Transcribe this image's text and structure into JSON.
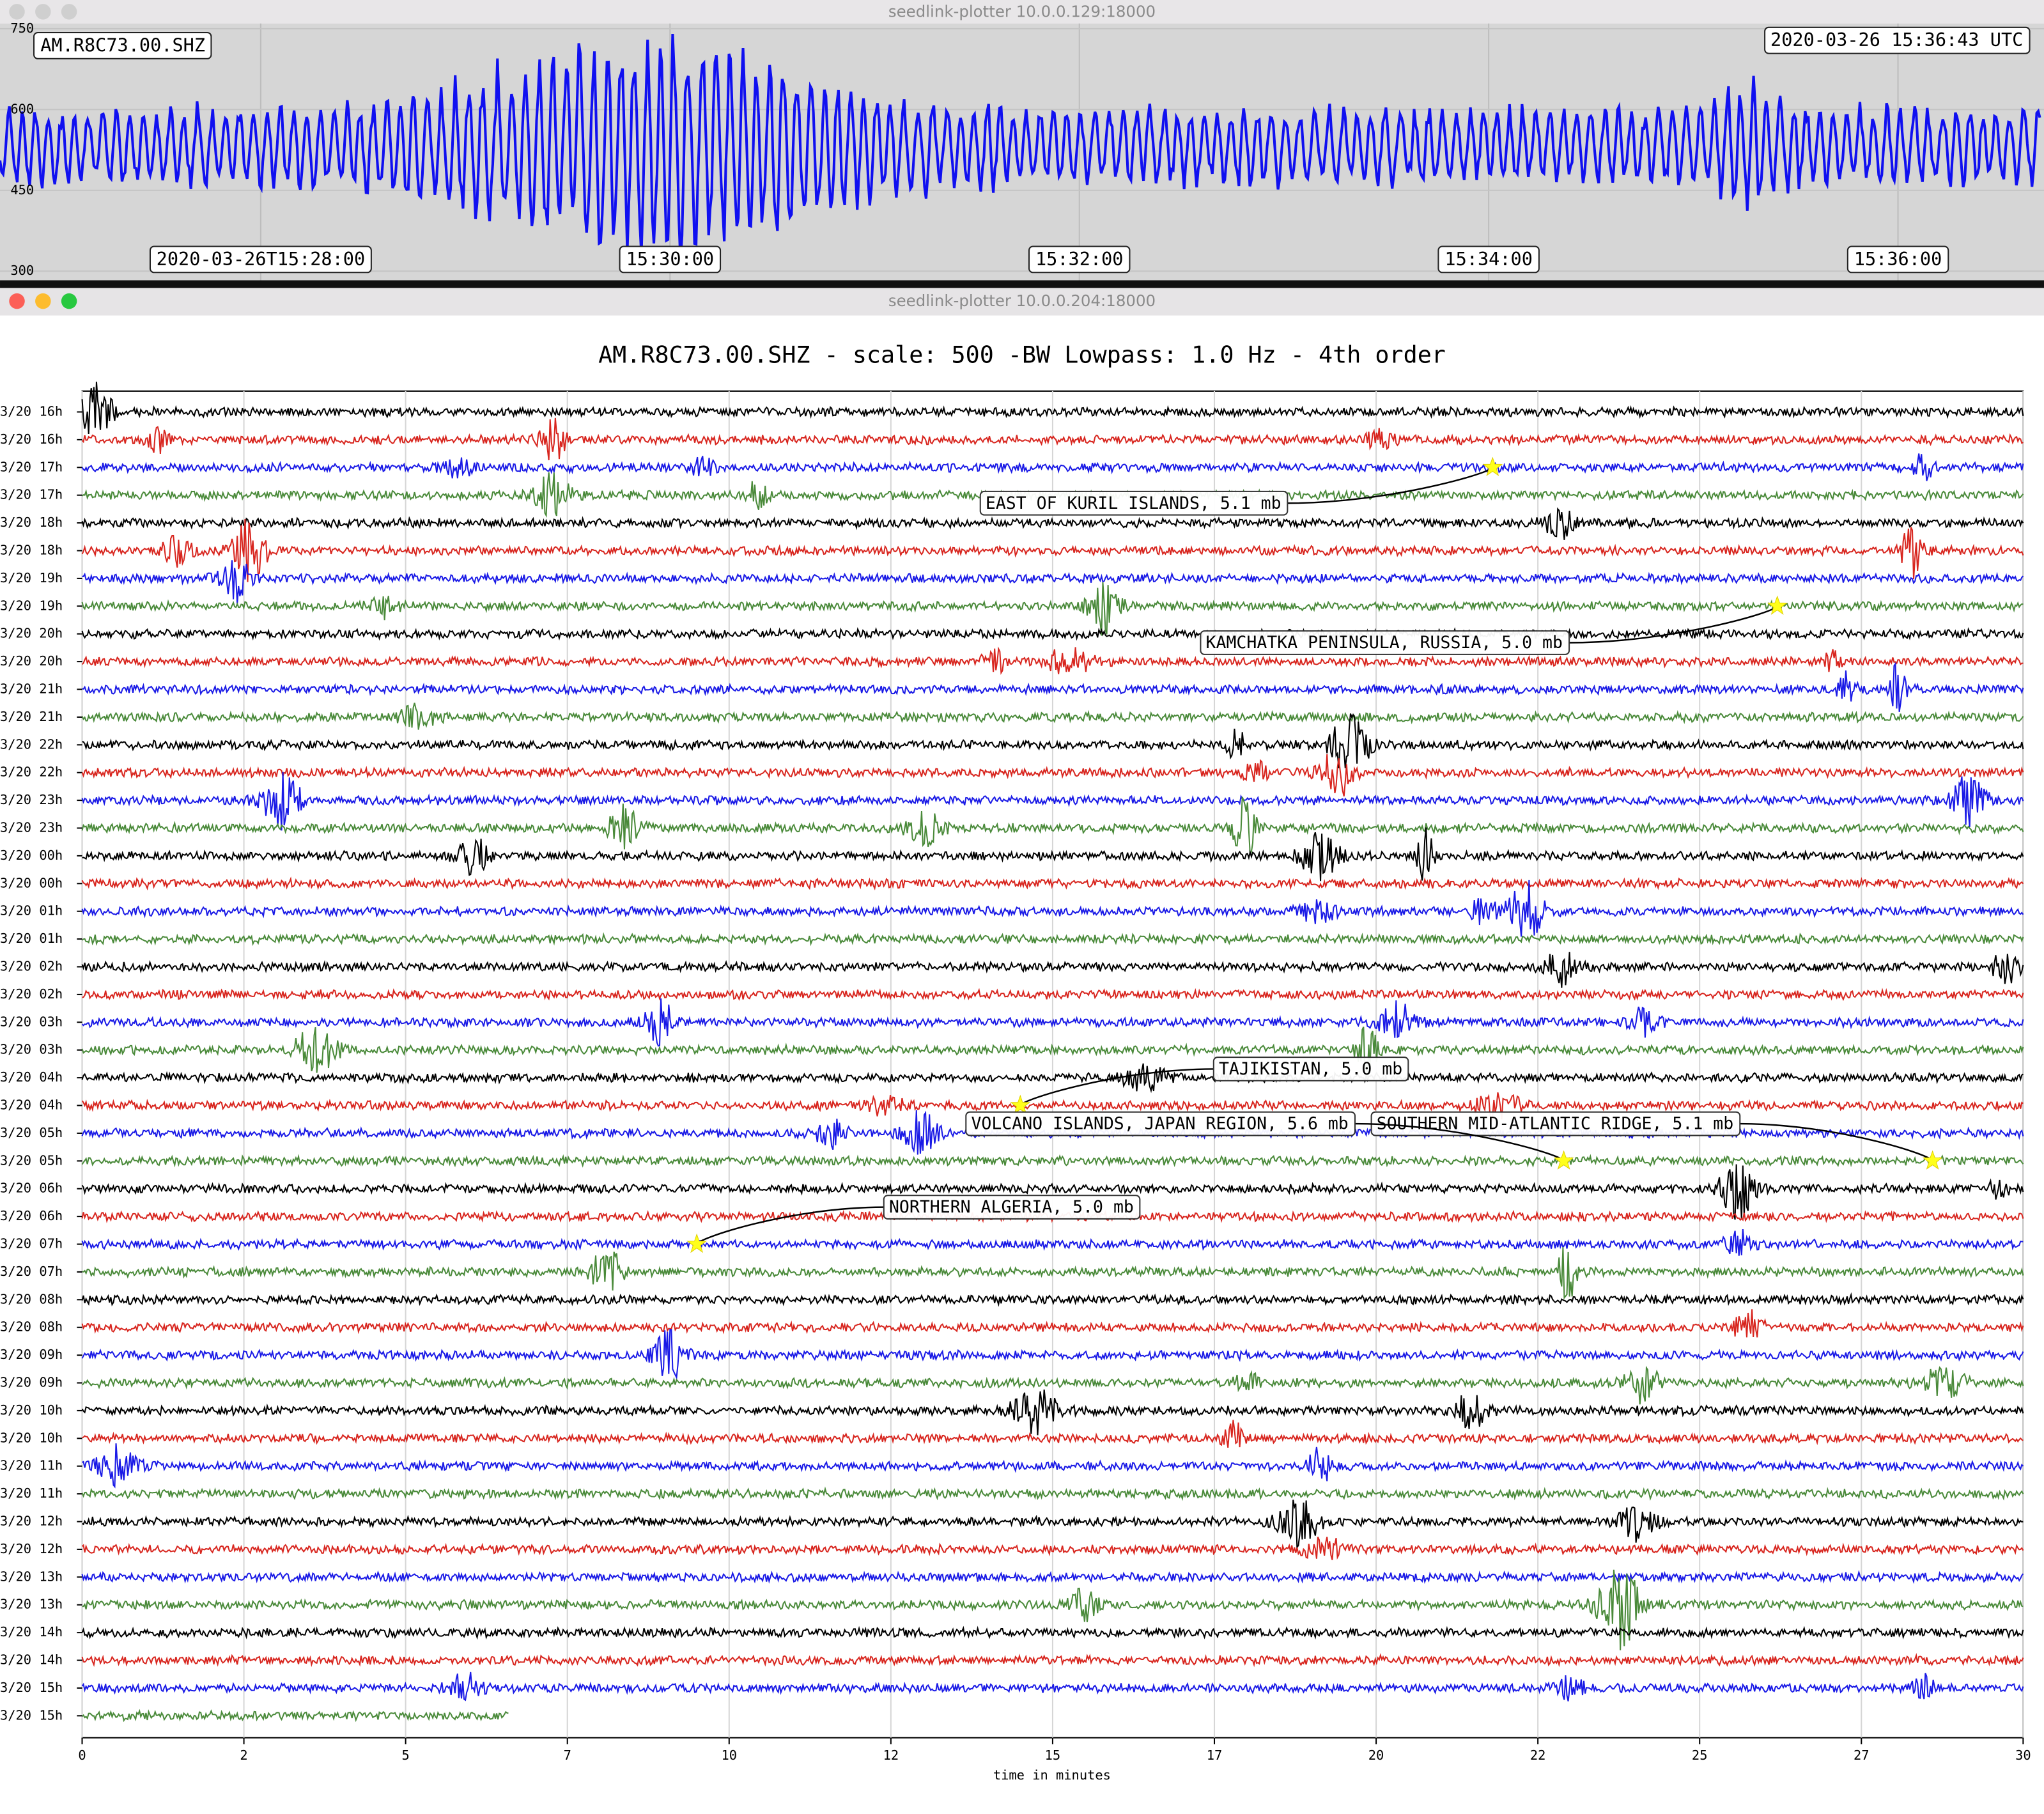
{
  "windows": [
    "seedlink-plotter 10.0.0.129:18000",
    "seedlink-plotter 10.0.0.204:18000"
  ],
  "chart_data": [
    {
      "type": "realtime",
      "station": "AM.R8C73.00.SHZ",
      "timestamp": "2020-03-26 15:36:43 UTC",
      "color": "#1010f0",
      "ylim": [
        300,
        750
      ],
      "yticks": [
        750,
        600,
        450,
        300
      ],
      "xticks": [
        "2020-03-26T15:28:00",
        "15:30:00",
        "15:32:00",
        "15:34:00",
        "15:36:00"
      ],
      "grid": true
    },
    {
      "type": "dayplot",
      "title": "AM.R8C73.00.SHZ - scale: 500 -BW Lowpass: 1.0 Hz - 4th order",
      "xlabel": "time in minutes",
      "xlim": [
        0,
        30
      ],
      "xticks": [
        0,
        {
          "value": 2.5,
          "label": "2"
        },
        5,
        {
          "value": 7.5,
          "label": "7"
        },
        10,
        {
          "value": 12.5,
          "label": "12"
        },
        15,
        {
          "value": 17.5,
          "label": "17"
        },
        20,
        {
          "value": 22.5,
          "label": "22"
        },
        25,
        {
          "value": 27.5,
          "label": "27"
        },
        30
      ],
      "colors": [
        "#000000",
        "#d8261f",
        "#1a1ae6",
        "#4a8a3a"
      ],
      "categories": [
        "3/20 16h",
        "3/20 16h",
        "3/20 17h",
        "3/20 17h",
        "3/20 18h",
        "3/20 18h",
        "3/20 19h",
        "3/20 19h",
        "3/20 20h",
        "3/20 20h",
        "3/20 21h",
        "3/20 21h",
        "3/20 22h",
        "3/20 22h",
        "3/20 23h",
        "3/20 23h",
        "3/20 00h",
        "3/20 00h",
        "3/20 01h",
        "3/20 01h",
        "3/20 02h",
        "3/20 02h",
        "3/20 03h",
        "3/20 03h",
        "3/20 04h",
        "3/20 04h",
        "3/20 05h",
        "3/20 05h",
        "3/20 06h",
        "3/20 06h",
        "3/20 07h",
        "3/20 07h",
        "3/20 08h",
        "3/20 08h",
        "3/20 09h",
        "3/20 09h",
        "3/20 10h",
        "3/20 10h",
        "3/20 11h",
        "3/20 11h",
        "3/20 12h",
        "3/20 12h",
        "3/20 13h",
        "3/20 13h",
        "3/20 14h",
        "3/20 14h",
        "3/20 15h",
        "3/20 15h"
      ],
      "events": [
        {
          "label": "EAST OF KURIL ISLANDS, 5.1 mb",
          "row": 2,
          "minute": 21.8
        },
        {
          "label": "KAMCHATKA PENINSULA, RUSSIA, 5.0 mb",
          "row": 7,
          "minute": 26.2
        },
        {
          "label": "TAJIKISTAN, 5.0 mb",
          "row": 25,
          "minute": 14.5
        },
        {
          "label": "SOUTHERN MID-ATLANTIC RIDGE, 5.1 mb",
          "row": 27,
          "minute": 28.6
        },
        {
          "label": "VOLCANO ISLANDS, JAPAN REGION, 5.6 mb",
          "row": 27,
          "minute": 22.9
        },
        {
          "label": "NORTHERN ALGERIA, 5.0 mb",
          "row": 30,
          "minute": 9.5
        }
      ]
    }
  ]
}
